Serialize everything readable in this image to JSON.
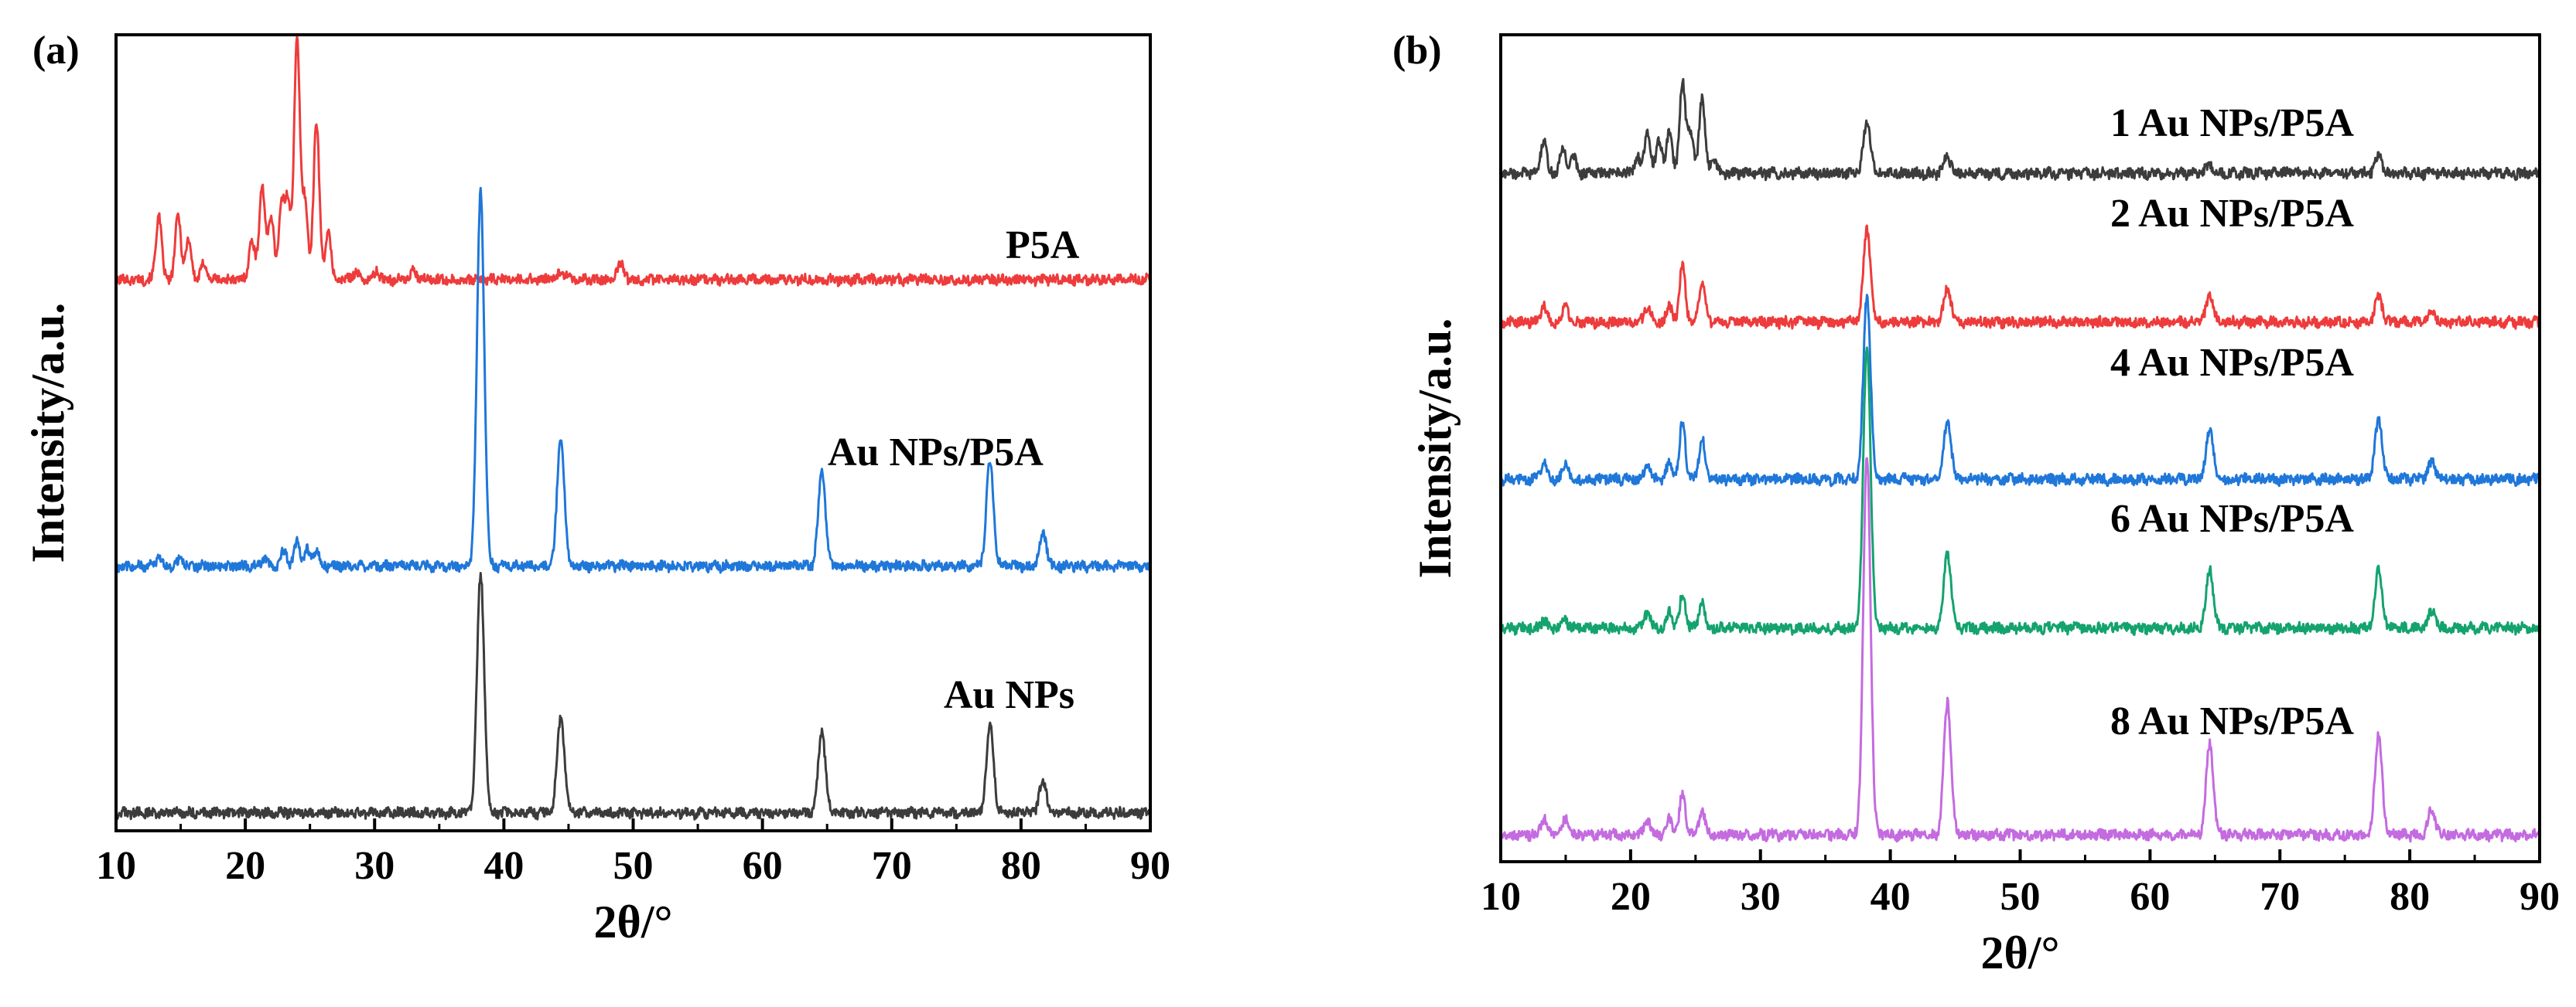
{
  "chart_data": [
    {
      "panel": "(a)",
      "type": "line",
      "xlabel": "2θ/°",
      "ylabel": "Intensity/a.u.",
      "xlim": [
        10,
        90
      ],
      "xticks": [
        10,
        20,
        30,
        40,
        50,
        60,
        70,
        80,
        90
      ],
      "grid": false,
      "series": [
        {
          "name": "P5A",
          "color": "#ee3b3b",
          "offset": 0.69,
          "peaks": [
            [
              13.3,
              0.08
            ],
            [
              14.8,
              0.08
            ],
            [
              15.6,
              0.05
            ],
            [
              16.8,
              0.02
            ],
            [
              20.5,
              0.05
            ],
            [
              21.3,
              0.12
            ],
            [
              22.0,
              0.08
            ],
            [
              22.8,
              0.09
            ],
            [
              23.3,
              0.1
            ],
            [
              24.0,
              0.3
            ],
            [
              24.6,
              0.1
            ],
            [
              25.5,
              0.2
            ],
            [
              26.4,
              0.06
            ],
            [
              28.5,
              0.01
            ],
            [
              30.2,
              0.01
            ],
            [
              33.0,
              0.01
            ],
            [
              44.5,
              0.01
            ],
            [
              49.0,
              0.02
            ]
          ]
        },
        {
          "name": "Au NPs/P5A",
          "color": "#1f77d9",
          "offset": 0.33,
          "peaks": [
            [
              13.3,
              0.01
            ],
            [
              15.0,
              0.01
            ],
            [
              21.5,
              0.01
            ],
            [
              23.0,
              0.02
            ],
            [
              24.0,
              0.03
            ],
            [
              24.8,
              0.02
            ],
            [
              25.5,
              0.02
            ],
            [
              38.2,
              0.47
            ],
            [
              44.4,
              0.16
            ],
            [
              64.6,
              0.12
            ],
            [
              77.6,
              0.13
            ],
            [
              81.7,
              0.04
            ]
          ]
        },
        {
          "name": "Au NPs",
          "color": "#3c3c3c",
          "offset": 0.02,
          "peaks": [
            [
              38.2,
              0.3
            ],
            [
              44.4,
              0.12
            ],
            [
              64.6,
              0.1
            ],
            [
              77.6,
              0.11
            ],
            [
              81.7,
              0.04
            ]
          ]
        }
      ]
    },
    {
      "panel": "(b)",
      "type": "line",
      "xlabel": "2θ/°",
      "ylabel": "Intensity/a.u.",
      "xlim": [
        10,
        90
      ],
      "xticks": [
        10,
        20,
        30,
        40,
        50,
        60,
        70,
        80,
        90
      ],
      "grid": false,
      "series": [
        {
          "name": "1 Au NPs/P5A",
          "color": "#3c3c3c",
          "offset": 0.83,
          "peaks": [
            [
              13.3,
              0.04
            ],
            [
              14.8,
              0.03
            ],
            [
              15.6,
              0.02
            ],
            [
              20.5,
              0.02
            ],
            [
              21.3,
              0.05
            ],
            [
              22.2,
              0.04
            ],
            [
              23.0,
              0.05
            ],
            [
              24.0,
              0.11
            ],
            [
              24.6,
              0.05
            ],
            [
              25.5,
              0.09
            ],
            [
              26.4,
              0.02
            ],
            [
              38.2,
              0.06
            ],
            [
              44.4,
              0.02
            ],
            [
              64.6,
              0.01
            ],
            [
              77.6,
              0.02
            ]
          ]
        },
        {
          "name": "2 Au NPs/P5A",
          "color": "#ee3b3b",
          "offset": 0.65,
          "peaks": [
            [
              13.3,
              0.02
            ],
            [
              15.0,
              0.02
            ],
            [
              21.3,
              0.02
            ],
            [
              23.0,
              0.02
            ],
            [
              24.0,
              0.07
            ],
            [
              25.5,
              0.05
            ],
            [
              38.2,
              0.11
            ],
            [
              44.4,
              0.04
            ],
            [
              64.6,
              0.03
            ],
            [
              77.6,
              0.03
            ],
            [
              81.7,
              0.01
            ]
          ]
        },
        {
          "name": "4 Au NPs/P5A",
          "color": "#1f77d9",
          "offset": 0.46,
          "peaks": [
            [
              13.3,
              0.02
            ],
            [
              15.0,
              0.02
            ],
            [
              21.3,
              0.02
            ],
            [
              23.0,
              0.02
            ],
            [
              24.0,
              0.07
            ],
            [
              25.5,
              0.05
            ],
            [
              38.2,
              0.22
            ],
            [
              44.4,
              0.07
            ],
            [
              64.6,
              0.06
            ],
            [
              77.6,
              0.07
            ],
            [
              81.7,
              0.02
            ]
          ]
        },
        {
          "name": "6 Au NPs/P5A",
          "color": "#14a36e",
          "offset": 0.28,
          "peaks": [
            [
              13.3,
              0.01
            ],
            [
              15.0,
              0.01
            ],
            [
              21.3,
              0.02
            ],
            [
              23.0,
              0.02
            ],
            [
              24.0,
              0.04
            ],
            [
              25.5,
              0.03
            ],
            [
              38.2,
              0.34
            ],
            [
              44.4,
              0.09
            ],
            [
              64.6,
              0.07
            ],
            [
              77.6,
              0.07
            ],
            [
              81.7,
              0.02
            ]
          ]
        },
        {
          "name": "8 Au NPs/P5A",
          "color": "#c46be0",
          "offset": 0.03,
          "peaks": [
            [
              13.3,
              0.02
            ],
            [
              15.0,
              0.02
            ],
            [
              21.3,
              0.02
            ],
            [
              23.0,
              0.02
            ],
            [
              24.0,
              0.05
            ],
            [
              25.5,
              0.03
            ],
            [
              38.2,
              0.46
            ],
            [
              44.4,
              0.16
            ],
            [
              64.6,
              0.11
            ],
            [
              77.6,
              0.12
            ],
            [
              81.7,
              0.03
            ]
          ]
        }
      ]
    }
  ]
}
